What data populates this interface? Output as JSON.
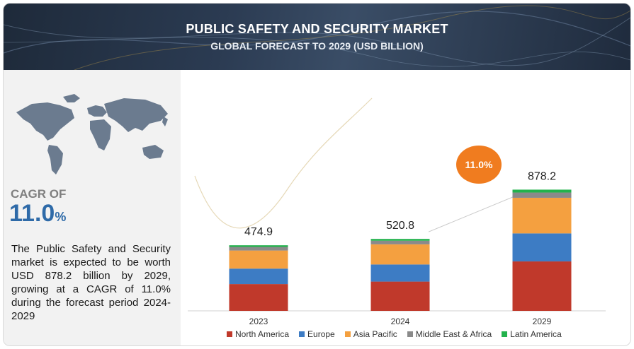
{
  "header": {
    "title": "PUBLIC SAFETY AND SECURITY MARKET",
    "subtitle": "GLOBAL FORECAST TO 2029 (USD BILLION)"
  },
  "sidebar": {
    "cagr_label": "CAGR OF",
    "cagr_value": "11.0",
    "cagr_unit": "%",
    "description": "The Public Safety and Security market is expected to be worth USD 878.2 billion by 2029, growing at a CAGR of 11.0% during the forecast period 2024-2029"
  },
  "chart_data": {
    "type": "bar",
    "stacked": true,
    "categories": [
      "2023",
      "2024",
      "2029"
    ],
    "totals": [
      "474.9",
      "520.8",
      "878.2"
    ],
    "cagr_badge": "11.0%",
    "series": [
      {
        "name": "North America",
        "color": "#c0392b",
        "values": [
          194,
          212,
          358
        ]
      },
      {
        "name": "Europe",
        "color": "#3d7cc4",
        "values": [
          112,
          124,
          203
        ]
      },
      {
        "name": "Asia Pacific",
        "color": "#f4a040",
        "values": [
          131,
          146,
          258
        ]
      },
      {
        "name": "Middle East & Africa",
        "color": "#8a8a8a",
        "values": [
          26,
          26,
          38
        ]
      },
      {
        "name": "Latin America",
        "color": "#22b24c",
        "values": [
          12,
          13,
          21
        ]
      }
    ],
    "legend_position": "bottom",
    "grid": false
  }
}
